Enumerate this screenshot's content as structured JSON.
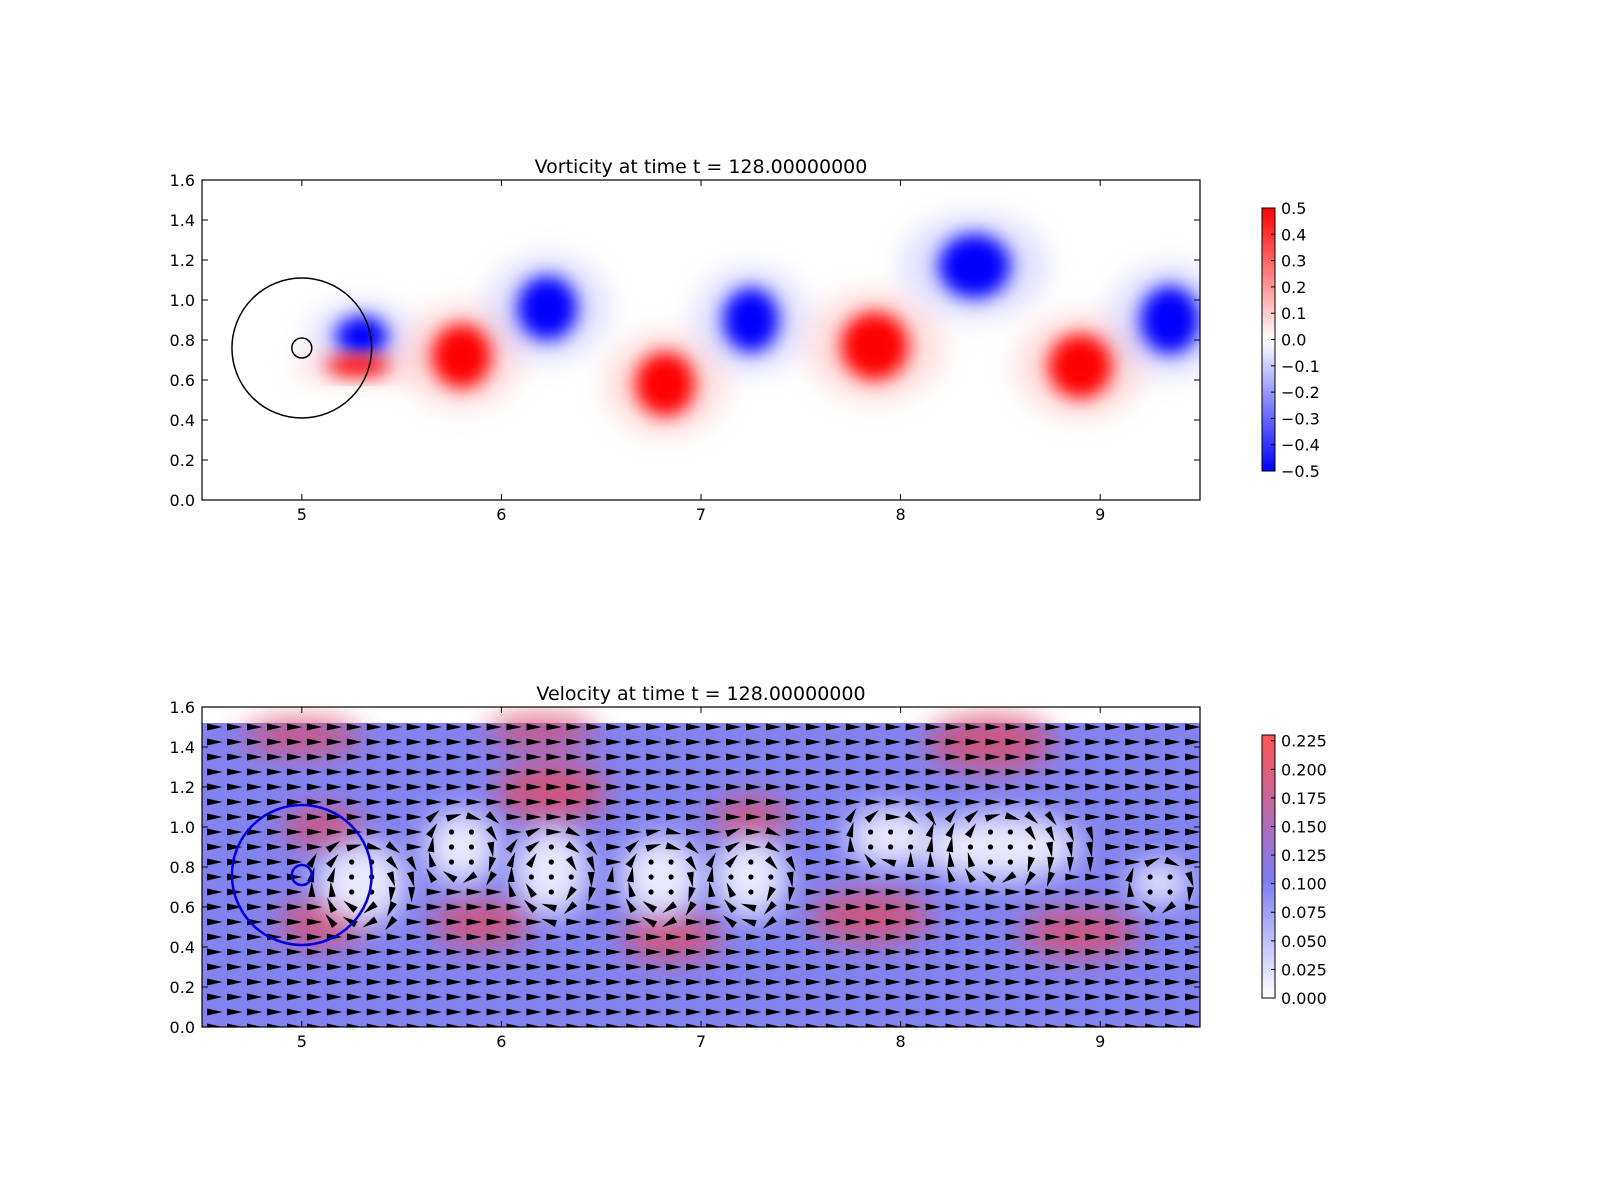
{
  "chart_data": [
    {
      "type": "heatmap",
      "title": "Vorticity at time t =   128.00000000",
      "xlim": [
        4.5,
        9.5
      ],
      "ylim": [
        0.0,
        1.6
      ],
      "x_ticks": [
        "5",
        "6",
        "7",
        "8",
        "9"
      ],
      "y_ticks": [
        "0.0",
        "0.2",
        "0.4",
        "0.6",
        "0.8",
        "1.0",
        "1.2",
        "1.4",
        "1.6"
      ],
      "colorbar": {
        "min": -0.5,
        "max": 0.5,
        "ticks": [
          "0.5",
          "0.4",
          "0.3",
          "0.2",
          "0.1",
          "0.0",
          "−0.1",
          "−0.2",
          "−0.3",
          "−0.4",
          "−0.5"
        ],
        "colors": [
          "#0000ff",
          "#ffffff",
          "#ff0000"
        ]
      },
      "vortices": [
        {
          "x": 5.3,
          "y": 0.82,
          "rx": 0.13,
          "ry": 0.1,
          "strength": -0.5
        },
        {
          "x": 5.28,
          "y": 0.67,
          "rx": 0.16,
          "ry": 0.05,
          "strength": 0.5
        },
        {
          "x": 5.8,
          "y": 0.72,
          "rx": 0.15,
          "ry": 0.16,
          "strength": 0.5
        },
        {
          "x": 6.23,
          "y": 0.96,
          "rx": 0.15,
          "ry": 0.16,
          "strength": -0.5
        },
        {
          "x": 6.82,
          "y": 0.58,
          "rx": 0.15,
          "ry": 0.16,
          "strength": 0.5
        },
        {
          "x": 7.25,
          "y": 0.9,
          "rx": 0.14,
          "ry": 0.16,
          "strength": -0.5
        },
        {
          "x": 7.87,
          "y": 0.77,
          "rx": 0.17,
          "ry": 0.17,
          "strength": 0.5
        },
        {
          "x": 8.37,
          "y": 1.17,
          "rx": 0.18,
          "ry": 0.16,
          "strength": -0.5
        },
        {
          "x": 8.9,
          "y": 0.67,
          "rx": 0.16,
          "ry": 0.16,
          "strength": 0.5
        },
        {
          "x": 9.35,
          "y": 0.9,
          "rx": 0.15,
          "ry": 0.17,
          "strength": -0.5
        }
      ],
      "circles": [
        {
          "cx": 5.0,
          "cy": 0.76,
          "r": 0.35,
          "color": "#000000"
        },
        {
          "cx": 5.0,
          "cy": 0.76,
          "r": 0.05,
          "color": "#000000"
        }
      ]
    },
    {
      "type": "heatmap",
      "title": "Velocity at time t =   128.00000000",
      "xlim": [
        4.5,
        9.5
      ],
      "ylim": [
        0.0,
        1.6
      ],
      "field_ymax": 1.52,
      "x_ticks": [
        "5",
        "6",
        "7",
        "8",
        "9"
      ],
      "y_ticks": [
        "0.0",
        "0.2",
        "0.4",
        "0.6",
        "0.8",
        "1.0",
        "1.2",
        "1.4",
        "1.6"
      ],
      "colorbar": {
        "min": 0.0,
        "max": 0.23,
        "ticks": [
          "0.225",
          "0.200",
          "0.175",
          "0.150",
          "0.125",
          "0.100",
          "0.075",
          "0.050",
          "0.025",
          "0.000"
        ],
        "colors": [
          "#ffffff",
          "#7c7cf2",
          "#ff5555"
        ]
      },
      "background_speed": 0.1,
      "fast_regions": [
        {
          "x": 6.25,
          "y": 1.18,
          "rx": 0.28,
          "ry": 0.16
        },
        {
          "x": 6.2,
          "y": 1.48,
          "rx": 0.28,
          "ry": 0.08
        },
        {
          "x": 8.45,
          "y": 1.42,
          "rx": 0.32,
          "ry": 0.14
        },
        {
          "x": 5.9,
          "y": 0.52,
          "rx": 0.25,
          "ry": 0.12
        },
        {
          "x": 6.85,
          "y": 0.45,
          "rx": 0.25,
          "ry": 0.12
        },
        {
          "x": 7.85,
          "y": 0.55,
          "rx": 0.3,
          "ry": 0.13
        },
        {
          "x": 8.9,
          "y": 0.47,
          "rx": 0.3,
          "ry": 0.12
        },
        {
          "x": 7.25,
          "y": 1.05,
          "rx": 0.2,
          "ry": 0.1
        },
        {
          "x": 5.1,
          "y": 0.52,
          "rx": 0.22,
          "ry": 0.12
        },
        {
          "x": 5.1,
          "y": 1.0,
          "rx": 0.2,
          "ry": 0.1
        },
        {
          "x": 5.0,
          "y": 1.45,
          "rx": 0.3,
          "ry": 0.09
        }
      ],
      "slow_regions": [
        {
          "x": 5.3,
          "y": 0.72,
          "rx": 0.22,
          "ry": 0.2
        },
        {
          "x": 5.8,
          "y": 0.9,
          "rx": 0.18,
          "ry": 0.18
        },
        {
          "x": 6.25,
          "y": 0.78,
          "rx": 0.18,
          "ry": 0.22
        },
        {
          "x": 6.8,
          "y": 0.75,
          "rx": 0.2,
          "ry": 0.2
        },
        {
          "x": 7.25,
          "y": 0.75,
          "rx": 0.18,
          "ry": 0.2
        },
        {
          "x": 7.95,
          "y": 0.95,
          "rx": 0.22,
          "ry": 0.14
        },
        {
          "x": 8.5,
          "y": 0.9,
          "rx": 0.4,
          "ry": 0.16
        },
        {
          "x": 9.3,
          "y": 0.72,
          "rx": 0.15,
          "ry": 0.1
        }
      ],
      "circles": [
        {
          "cx": 5.0,
          "cy": 0.76,
          "r": 0.35,
          "color": "#0000dd"
        },
        {
          "cx": 5.0,
          "cy": 0.76,
          "r": 0.05,
          "color": "#0000dd"
        }
      ]
    }
  ]
}
